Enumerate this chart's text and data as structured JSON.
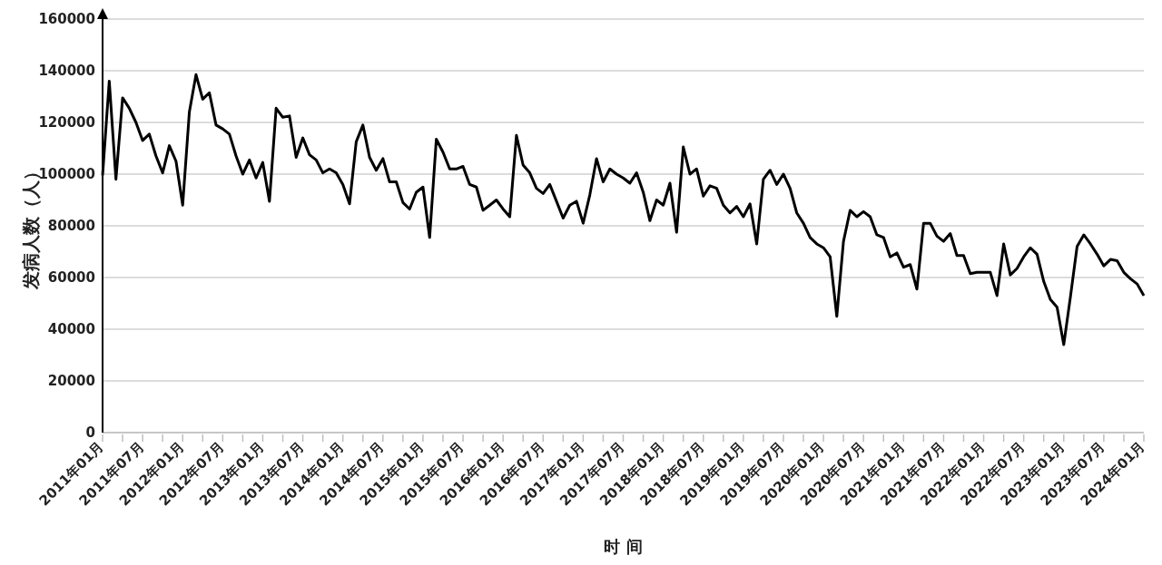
{
  "chart_data": {
    "type": "line",
    "xlabel": "时 间",
    "ylabel": "发病人数（人）",
    "categories": [
      "2011年01月",
      null,
      null,
      null,
      null,
      null,
      "2011年07月",
      null,
      null,
      null,
      null,
      null,
      "2012年01月",
      null,
      null,
      null,
      null,
      null,
      "2012年07月",
      null,
      null,
      null,
      null,
      null,
      "2013年01月",
      null,
      null,
      null,
      null,
      null,
      "2013年07月",
      null,
      null,
      null,
      null,
      null,
      "2014年01月",
      null,
      null,
      null,
      null,
      null,
      "2014年07月",
      null,
      null,
      null,
      null,
      null,
      "2015年01月",
      null,
      null,
      null,
      null,
      null,
      "2015年07月",
      null,
      null,
      null,
      null,
      null,
      "2016年01月",
      null,
      null,
      null,
      null,
      null,
      "2016年07月",
      null,
      null,
      null,
      null,
      null,
      "2017年01月",
      null,
      null,
      null,
      null,
      null,
      "2017年07月",
      null,
      null,
      null,
      null,
      null,
      "2018年01月",
      null,
      null,
      null,
      null,
      null,
      "2018年07月",
      null,
      null,
      null,
      null,
      null,
      "2019年01月",
      null,
      null,
      null,
      null,
      null,
      "2019年07月",
      null,
      null,
      null,
      null,
      null,
      "2020年01月",
      null,
      null,
      null,
      null,
      null,
      "2020年07月",
      null,
      null,
      null,
      null,
      null,
      "2021年01月",
      null,
      null,
      null,
      null,
      null,
      "2021年07月",
      null,
      null,
      null,
      null,
      null,
      "2022年01月",
      null,
      null,
      null,
      null,
      null,
      "2022年07月",
      null,
      null,
      null,
      null,
      null,
      "2023年01月",
      null,
      null,
      null,
      null,
      null,
      "2023年07月",
      null,
      null,
      null,
      null,
      null,
      "2024年01月"
    ],
    "series": [
      {
        "color": "#000000",
        "values": [
          99500,
          136000,
          98000,
          129500,
          125500,
          120000,
          113000,
          115500,
          107000,
          100500,
          111000,
          105000,
          88000,
          124000,
          138500,
          129000,
          131500,
          119000,
          117500,
          115500,
          107000,
          100000,
          105500,
          98500,
          104500,
          89500,
          125500,
          122000,
          122500,
          106500,
          114000,
          107500,
          105500,
          100500,
          102000,
          100500,
          96000,
          88500,
          112500,
          119000,
          106500,
          101500,
          106000,
          97000,
          97000,
          89000,
          86500,
          93000,
          95000,
          75500,
          113500,
          108500,
          102000,
          102000,
          103000,
          96000,
          95000,
          86000,
          88000,
          90000,
          86500,
          83500,
          115000,
          103500,
          100500,
          94500,
          92500,
          96000,
          89500,
          83000,
          88000,
          89500,
          81000,
          92000,
          106000,
          97000,
          102000,
          100000,
          98500,
          96500,
          100500,
          93000,
          82000,
          90000,
          88000,
          96500,
          77500,
          110500,
          100000,
          102000,
          91500,
          95500,
          94500,
          88000,
          85000,
          87500,
          83500,
          88500,
          73000,
          98000,
          101500,
          96000,
          100000,
          94500,
          85000,
          81000,
          75500,
          73000,
          71500,
          68000,
          45000,
          74000,
          86000,
          83500,
          85500,
          83500,
          76500,
          75500,
          68000,
          69500,
          64000,
          65000,
          55500,
          81000,
          81000,
          76000,
          74000,
          77000,
          68500,
          68500,
          61500,
          62000,
          62000,
          62000,
          53000,
          73000,
          61000,
          63500,
          68000,
          71500,
          69000,
          58500,
          51500,
          48500,
          34000,
          52500,
          72000,
          76500,
          73000,
          69000,
          64500,
          67000,
          66500,
          62000,
          59500,
          57500,
          53000
        ]
      }
    ],
    "ylim": [
      0,
      160000
    ],
    "yticks": [
      0,
      20000,
      40000,
      60000,
      80000,
      100000,
      120000,
      140000,
      160000
    ],
    "grid": "y",
    "marker": "none",
    "line_style": "solid"
  }
}
